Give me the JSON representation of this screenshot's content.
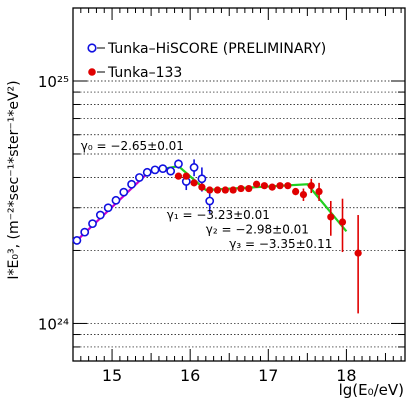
{
  "chart_data": {
    "type": "scatter",
    "title": "",
    "xlabel": "lg(E₀/eV)",
    "ylabel": "I*E₀³, (m⁻²*sec⁻¹*ster⁻¹*eV²)",
    "xlim": [
      14.5,
      18.75
    ],
    "ylim": [
      7e+23,
      2e+25
    ],
    "yscale": "log",
    "grid": "horizontal",
    "legend_position": "top-left",
    "x_ticks": [
      "15",
      "16",
      "17",
      "18"
    ],
    "y_ticks": [
      "10²⁴",
      "10²⁵"
    ],
    "series": [
      {
        "name": "Tunka–HiSCORE (PRELIMINARY)",
        "marker": "open-circle",
        "color": "#1010e0",
        "points": [
          {
            "x": 14.55,
            "y": 2.2e+24,
            "err": 0.0
          },
          {
            "x": 14.65,
            "y": 2.38e+24,
            "err": 0.0
          },
          {
            "x": 14.75,
            "y": 2.58e+24,
            "err": 0.0
          },
          {
            "x": 14.85,
            "y": 2.8e+24,
            "err": 0.0
          },
          {
            "x": 14.95,
            "y": 3e+24,
            "err": 0.0
          },
          {
            "x": 15.05,
            "y": 3.22e+24,
            "err": 0.0
          },
          {
            "x": 15.15,
            "y": 3.48e+24,
            "err": 0.0
          },
          {
            "x": 15.25,
            "y": 3.75e+24,
            "err": 0.0
          },
          {
            "x": 15.35,
            "y": 4e+24,
            "err": 0.0
          },
          {
            "x": 15.45,
            "y": 4.2e+24,
            "err": 0.0
          },
          {
            "x": 15.55,
            "y": 4.3e+24,
            "err": 0.0
          },
          {
            "x": 15.65,
            "y": 4.35e+24,
            "err": 0.0
          },
          {
            "x": 15.75,
            "y": 4.25e+24,
            "err": 0.0
          },
          {
            "x": 15.85,
            "y": 4.55e+24,
            "err": 2e+23
          },
          {
            "x": 15.95,
            "y": 3.85e+24,
            "err": 3e+23
          },
          {
            "x": 16.05,
            "y": 4.4e+24,
            "err": 3.5e+23
          },
          {
            "x": 16.15,
            "y": 3.95e+24,
            "err": 4.5e+23
          },
          {
            "x": 16.25,
            "y": 3.2e+24,
            "err": 3.5e+23
          }
        ]
      },
      {
        "name": "Tunka–133",
        "marker": "filled-circle",
        "color": "#e00000",
        "points": [
          {
            "x": 15.85,
            "y": 4.05e+24,
            "err": 1e+23
          },
          {
            "x": 15.95,
            "y": 4.05e+24,
            "err": 1e+23
          },
          {
            "x": 16.05,
            "y": 3.8e+24,
            "err": 1e+23
          },
          {
            "x": 16.15,
            "y": 3.65e+24,
            "err": 8e+22
          },
          {
            "x": 16.25,
            "y": 3.55e+24,
            "err": 8e+22
          },
          {
            "x": 16.35,
            "y": 3.55e+24,
            "err": 8e+22
          },
          {
            "x": 16.45,
            "y": 3.55e+24,
            "err": 8e+22
          },
          {
            "x": 16.55,
            "y": 3.55e+24,
            "err": 8e+22
          },
          {
            "x": 16.65,
            "y": 3.6e+24,
            "err": 8e+22
          },
          {
            "x": 16.75,
            "y": 3.6e+24,
            "err": 8e+22
          },
          {
            "x": 16.85,
            "y": 3.75e+24,
            "err": 8e+22
          },
          {
            "x": 16.95,
            "y": 3.7e+24,
            "err": 8e+22
          },
          {
            "x": 17.05,
            "y": 3.65e+24,
            "err": 8e+22
          },
          {
            "x": 17.15,
            "y": 3.7e+24,
            "err": 8e+22
          },
          {
            "x": 17.25,
            "y": 3.7e+24,
            "err": 8e+22
          },
          {
            "x": 17.35,
            "y": 3.5e+24,
            "err": 1.2e+23
          },
          {
            "x": 17.45,
            "y": 3.4e+24,
            "err": 2e+23
          },
          {
            "x": 17.55,
            "y": 3.7e+24,
            "err": 2.5e+23
          },
          {
            "x": 17.65,
            "y": 3.5e+24,
            "err": 3e+23
          },
          {
            "x": 17.8,
            "y": 2.75e+24,
            "err": 4.5e+23
          },
          {
            "x": 17.95,
            "y": 2.62e+24,
            "err": 6.5e+23
          },
          {
            "x": 18.15,
            "y": 1.95e+24,
            "err": 8.5e+23
          }
        ]
      }
    ],
    "fit_line": {
      "color": "#20d020",
      "points": [
        [
          15.4,
          4.2e+24
        ],
        [
          15.85,
          4.45e+24
        ],
        [
          16.2,
          3.55e+24
        ],
        [
          17.5,
          3.75e+24
        ],
        [
          18.0,
          2.4e+24
        ]
      ]
    },
    "fit_line_2": {
      "color": "#cc00cc",
      "points": [
        [
          14.55,
          2.2e+24
        ],
        [
          15.45,
          4.15e+24
        ]
      ]
    },
    "annotations": [
      {
        "label": "γ₀ = −2.65±0.01",
        "x": 14.6,
        "y": 5.2e+24
      },
      {
        "label": "γ₁ = −3.23±0.01",
        "x": 15.7,
        "y": 2.7e+24
      },
      {
        "label": "γ₂ = −2.98±0.01",
        "x": 16.2,
        "y": 2.35e+24
      },
      {
        "label": "γ₃ = −3.35±0.11",
        "x": 16.5,
        "y": 2.05e+24
      }
    ]
  }
}
